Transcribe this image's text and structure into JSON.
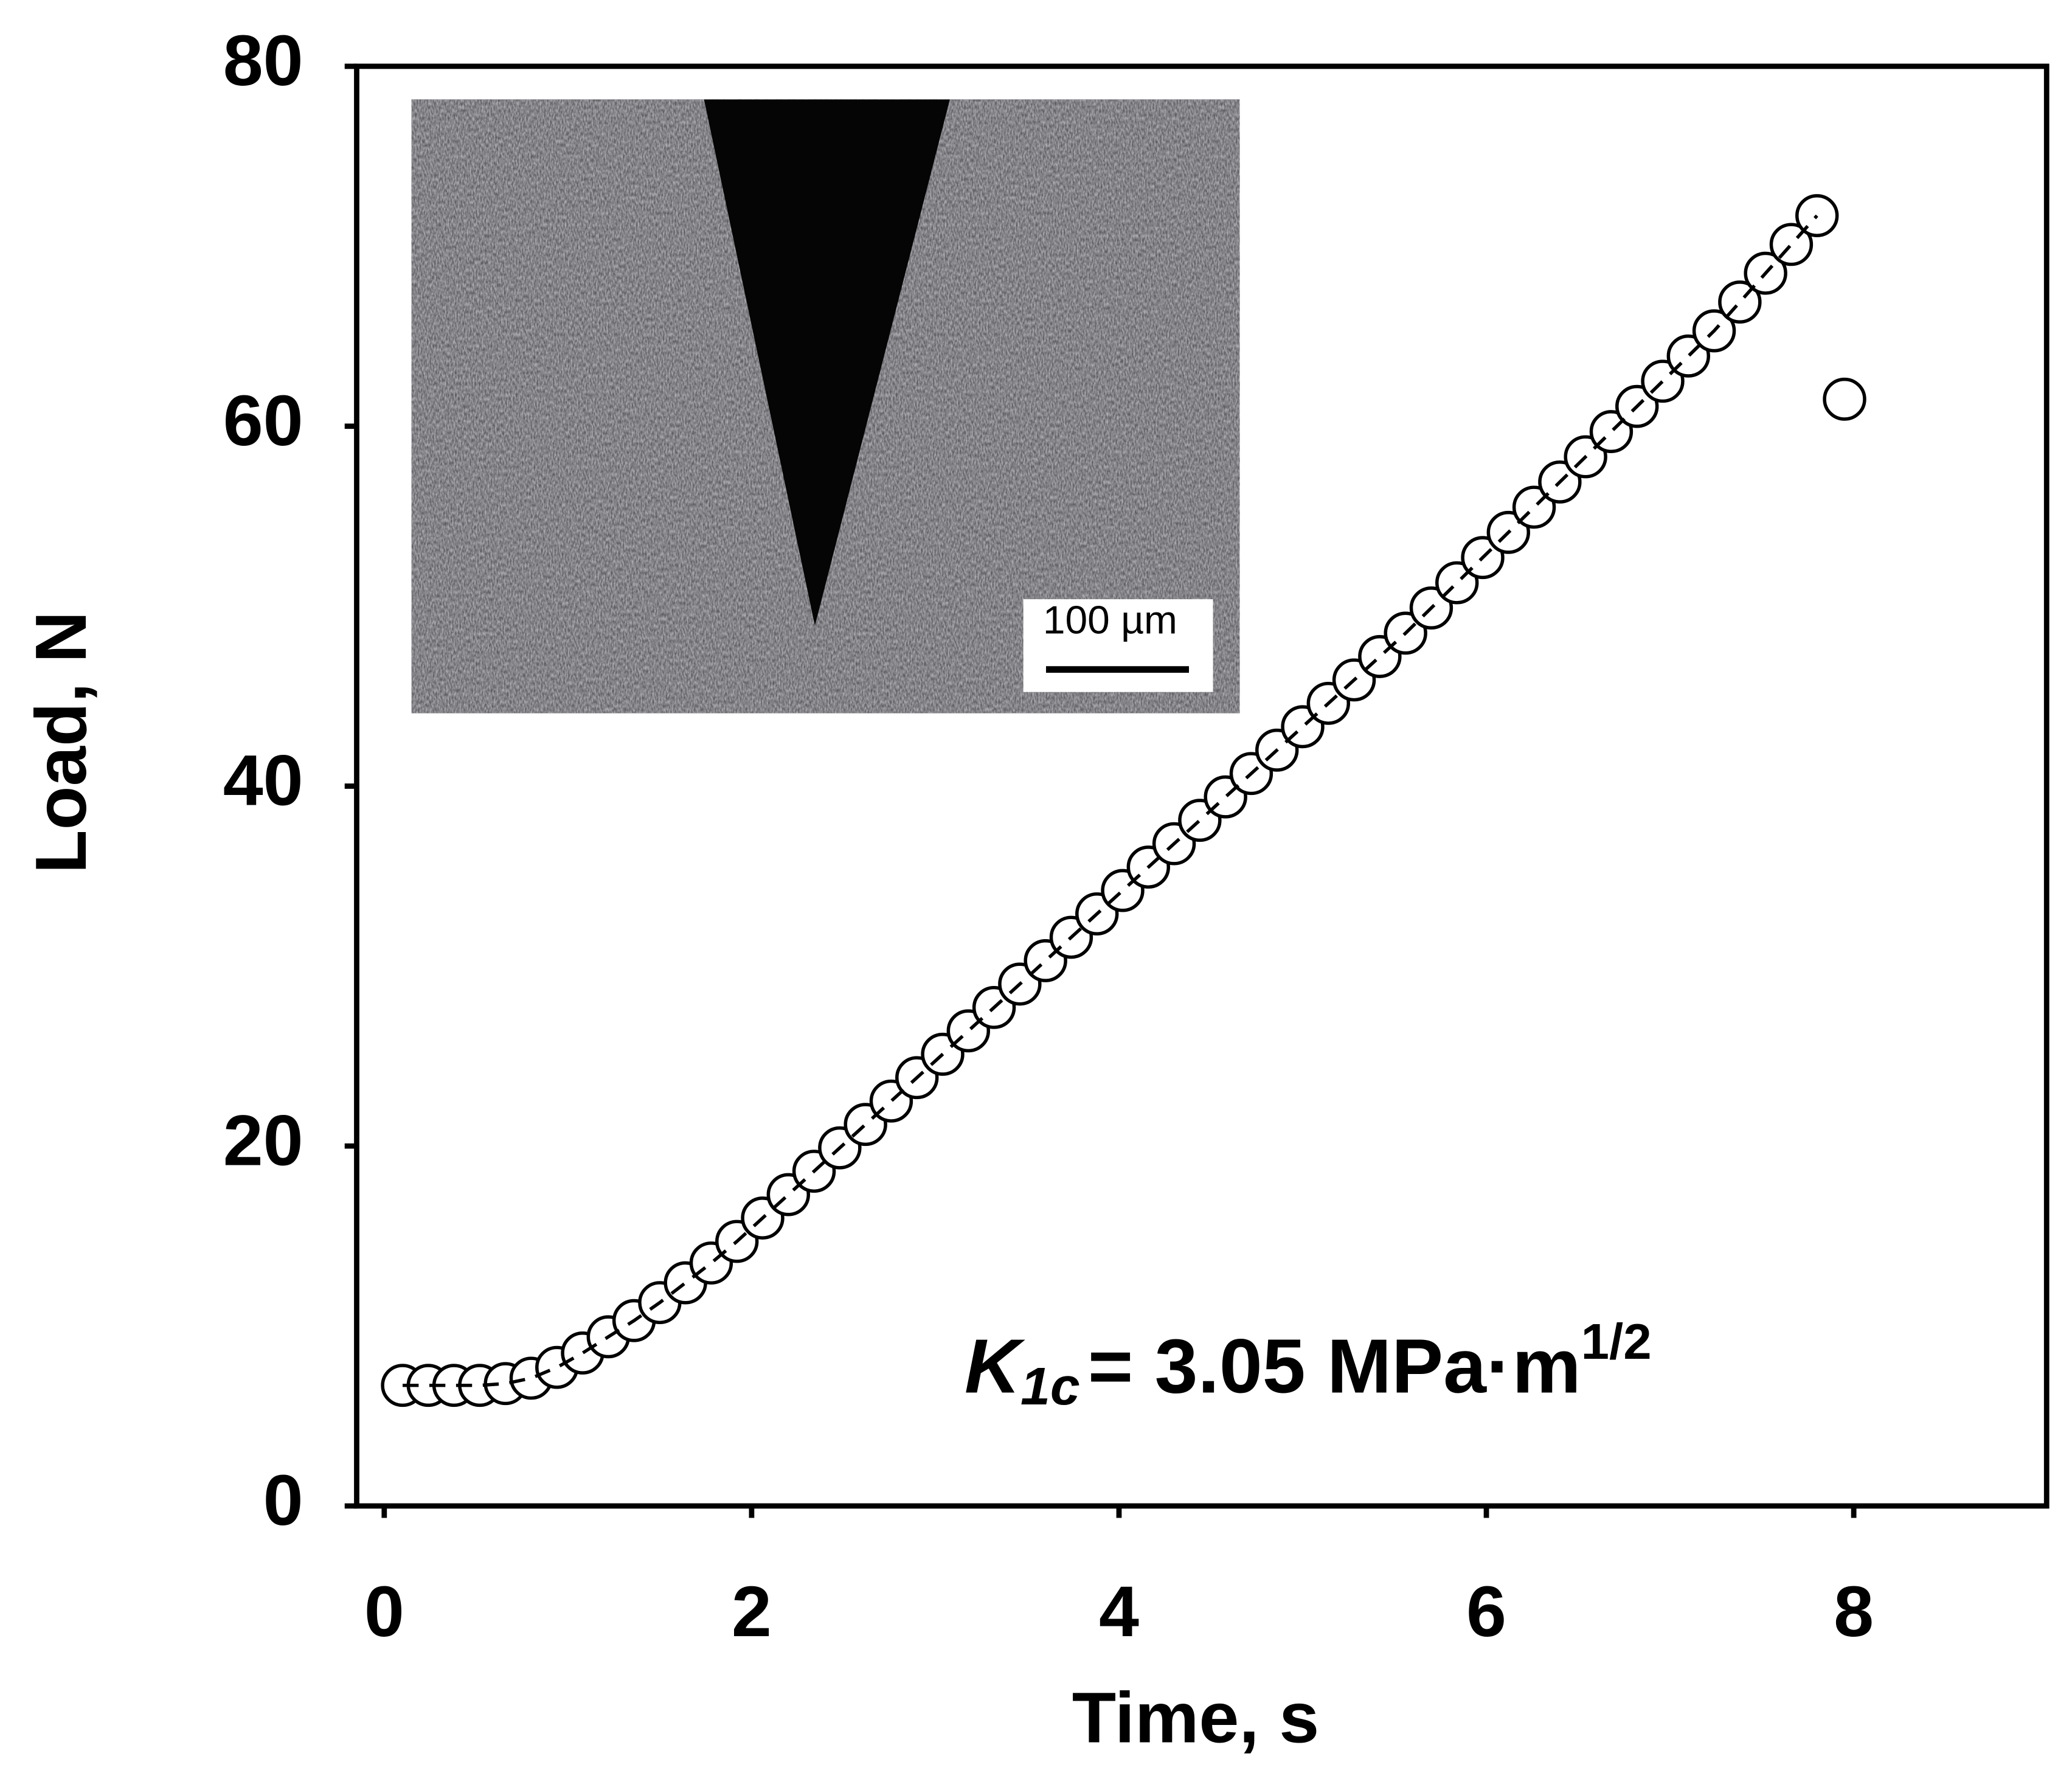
{
  "chart_data": {
    "type": "scatter",
    "xlabel": "Time, s",
    "ylabel": "Load, N",
    "xlim": [
      -0.15,
      9.05
    ],
    "ylim": [
      0,
      80
    ],
    "xticks": [
      0,
      2,
      4,
      6,
      8
    ],
    "yticks": [
      0,
      20,
      40,
      60,
      80
    ],
    "series": [
      {
        "color": "#000000",
        "fit_line": true,
        "x": [
          0.1,
          0.24,
          0.38,
          0.52,
          0.66,
          0.8,
          0.94,
          1.08,
          1.22,
          1.36,
          1.5,
          1.64,
          1.78,
          1.92,
          2.06,
          2.2,
          2.34,
          2.48,
          2.62,
          2.76,
          2.9,
          3.04,
          3.18,
          3.32,
          3.46,
          3.6,
          3.74,
          3.88,
          4.02,
          4.16,
          4.3,
          4.44,
          4.58,
          4.72,
          4.86,
          5.0,
          5.14,
          5.28,
          5.42,
          5.56,
          5.7,
          5.84,
          5.98,
          6.12,
          6.26,
          6.4,
          6.54,
          6.68,
          6.82,
          6.96,
          7.1,
          7.24,
          7.38,
          7.52,
          7.66,
          7.8
        ],
        "values": [
          6.7,
          6.7,
          6.7,
          6.7,
          6.8,
          7.1,
          7.7,
          8.5,
          9.4,
          10.3,
          11.3,
          12.4,
          13.5,
          14.7,
          16.0,
          17.3,
          18.6,
          19.9,
          21.2,
          22.5,
          23.8,
          25.1,
          26.4,
          27.7,
          29.0,
          30.3,
          31.6,
          32.9,
          34.2,
          35.5,
          36.8,
          38.1,
          39.4,
          40.7,
          42.0,
          43.3,
          44.6,
          45.9,
          47.2,
          48.5,
          49.9,
          51.3,
          52.7,
          54.1,
          55.5,
          56.9,
          58.3,
          59.7,
          61.1,
          62.5,
          63.9,
          65.3,
          66.9,
          68.5,
          70.1,
          71.7
        ]
      },
      {
        "color": "#000000",
        "fit_line": false,
        "x": [
          7.95
        ],
        "values": [
          61.5
        ]
      }
    ],
    "annotation": {
      "symbol": "K",
      "subscript": "1c",
      "text": "= 3.05 MPa·m",
      "superscript": "1/2"
    },
    "inset": {
      "scale_bar_label": "100 µm"
    }
  }
}
